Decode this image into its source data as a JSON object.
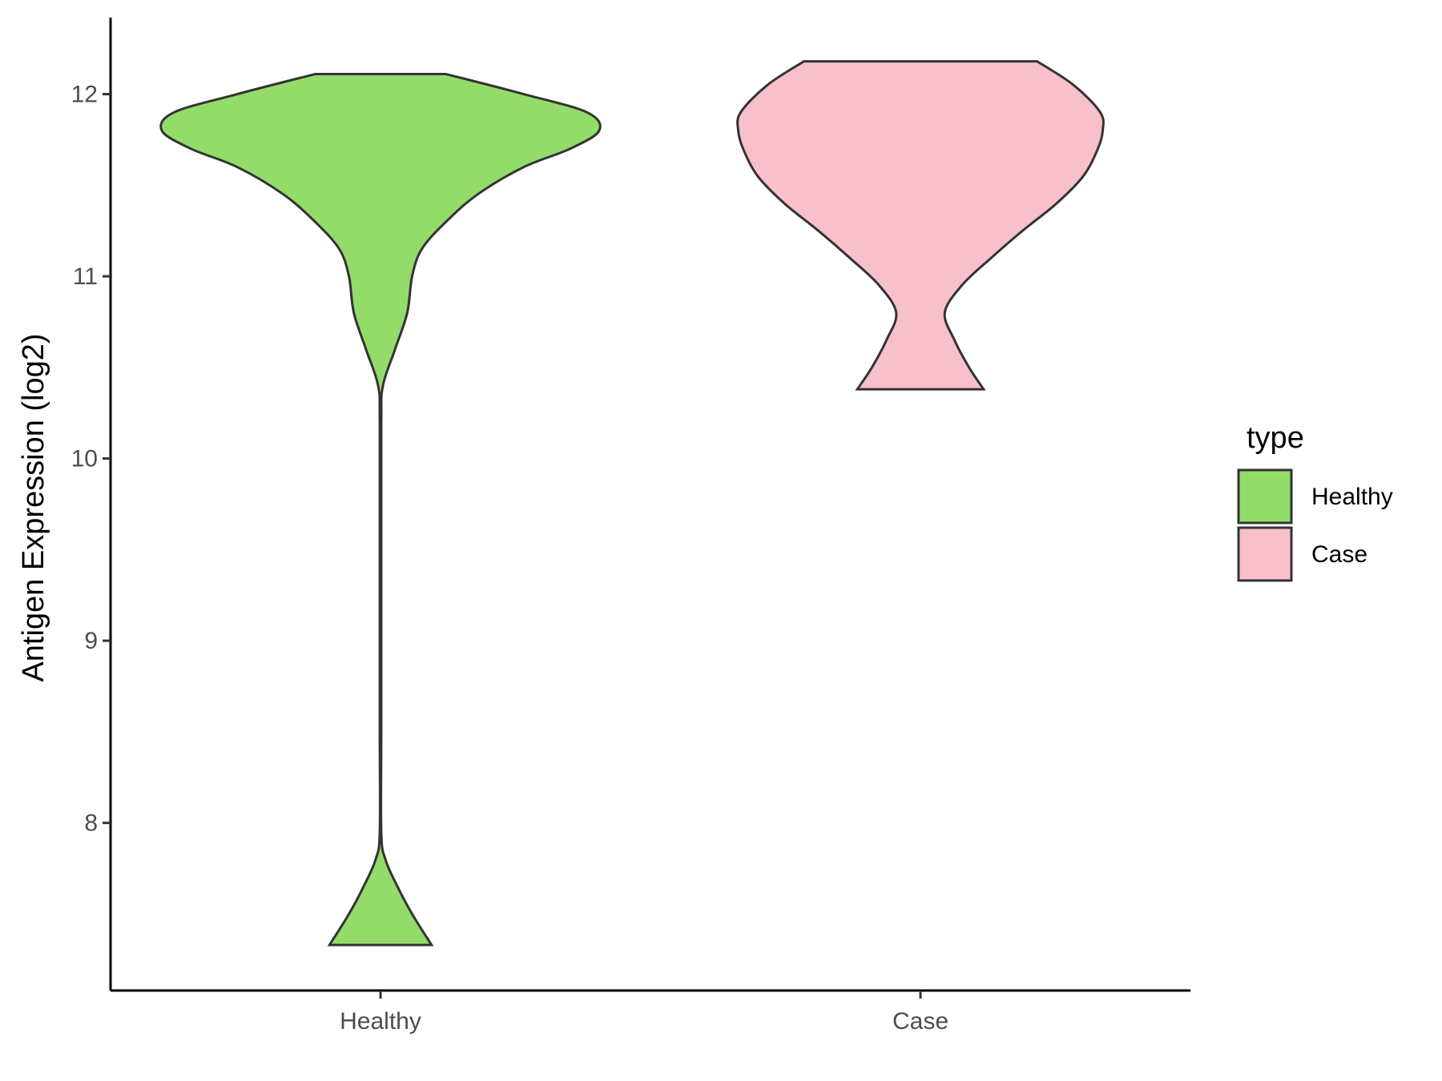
{
  "chart_data": {
    "type": "violin",
    "xlabel": "",
    "ylabel": "Antigen Expression (log2)",
    "ylim": [
      7.08,
      12.42
    ],
    "yticks": [
      8,
      9,
      10,
      11,
      12
    ],
    "categories": [
      "Healthy",
      "Case"
    ],
    "legend": {
      "title": "type",
      "placement": "right",
      "items": [
        {
          "label": "Healthy",
          "color": "#93dc6a"
        },
        {
          "label": "Case",
          "color": "#f8c0cb"
        }
      ]
    },
    "series": [
      {
        "name": "Healthy",
        "color": "#93dc6a",
        "min": 7.33,
        "max": 12.11,
        "density": [
          [
            7.33,
            0.21
          ],
          [
            7.5,
            0.13
          ],
          [
            7.65,
            0.07
          ],
          [
            7.8,
            0.02
          ],
          [
            7.95,
            0.003
          ],
          [
            8.5,
            0.003
          ],
          [
            9.5,
            0.003
          ],
          [
            10.2,
            0.003
          ],
          [
            10.4,
            0.01
          ],
          [
            10.6,
            0.06
          ],
          [
            10.8,
            0.11
          ],
          [
            11.0,
            0.13
          ],
          [
            11.15,
            0.17
          ],
          [
            11.3,
            0.27
          ],
          [
            11.45,
            0.4
          ],
          [
            11.6,
            0.59
          ],
          [
            11.7,
            0.78
          ],
          [
            11.8,
            0.9
          ],
          [
            11.9,
            0.85
          ],
          [
            12.0,
            0.59
          ],
          [
            12.11,
            0.27
          ]
        ]
      },
      {
        "name": "Case",
        "color": "#f8c0cb",
        "min": 10.38,
        "max": 12.18,
        "density": [
          [
            10.38,
            0.26
          ],
          [
            10.5,
            0.2
          ],
          [
            10.65,
            0.14
          ],
          [
            10.8,
            0.1
          ],
          [
            10.95,
            0.17
          ],
          [
            11.1,
            0.29
          ],
          [
            11.25,
            0.42
          ],
          [
            11.4,
            0.56
          ],
          [
            11.55,
            0.67
          ],
          [
            11.7,
            0.73
          ],
          [
            11.8,
            0.75
          ],
          [
            11.9,
            0.74
          ],
          [
            12.05,
            0.63
          ],
          [
            12.18,
            0.48
          ]
        ]
      }
    ]
  }
}
